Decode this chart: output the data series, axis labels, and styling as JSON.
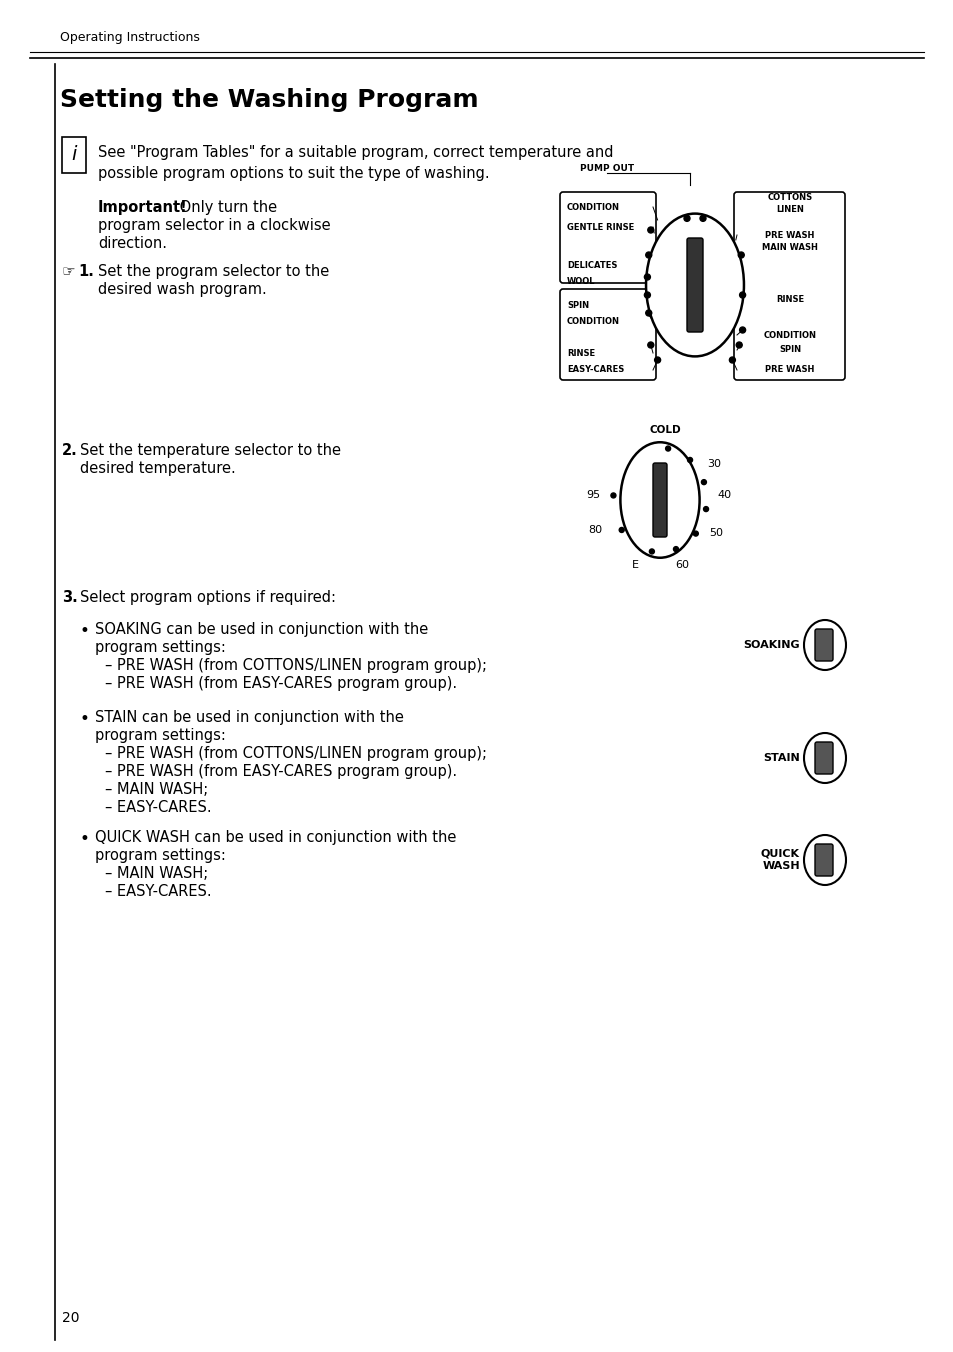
{
  "page_header": "Operating Instructions",
  "title": "Setting the Washing Program",
  "info_text": "See \"Program Tables\" for a suitable program, correct temperature and\npossible program options to suit the type of washing.",
  "important_text": "Important! Only turn the\nprogram selector in a clockwise\ndirection.",
  "step1_text": "1.  Set the program selector to the\n    desired wash program.",
  "step2_text": "2.  Set the temperature selector to the\n    desired temperature.",
  "step3_text": "3.  Select program options if required:",
  "bullet1_title": "SOAKING",
  "bullet1_text": "SOAKING can be used in conjunction with the\nprogram settings:\n– PRE WASH (from COTTONS/LINEN program group);\n– PRE WASH (from EASY-CARES program group).",
  "bullet2_title": "STAIN",
  "bullet2_text": "STAIN can be used in conjunction with the\nprogram settings:\n– PRE WASH (from COTTONS/LINEN program group);\n– PRE WASH (from EASY-CARES program group).\n– MAIN WASH;\n– EASY-CARES.",
  "bullet3_title": "QUICK\nWASH",
  "bullet3_text": "QUICK WASH can be used in conjunction with the\nprogram settings:\n– MAIN WASH;\n– EASY-CARES.",
  "page_number": "20",
  "bg_color": "#ffffff",
  "text_color": "#000000"
}
